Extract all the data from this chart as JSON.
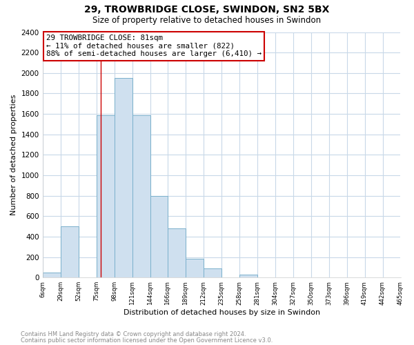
{
  "title": "29, TROWBRIDGE CLOSE, SWINDON, SN2 5BX",
  "subtitle": "Size of property relative to detached houses in Swindon",
  "xlabel": "Distribution of detached houses by size in Swindon",
  "ylabel": "Number of detached properties",
  "footer_line1": "Contains HM Land Registry data © Crown copyright and database right 2024.",
  "footer_line2": "Contains public sector information licensed under the Open Government Licence v3.0.",
  "bar_edges": [
    6,
    29,
    52,
    75,
    98,
    121,
    144,
    166,
    189,
    212,
    235,
    258,
    281,
    304,
    327,
    350,
    373,
    396,
    419,
    442,
    465
  ],
  "bar_heights": [
    50,
    500,
    0,
    1590,
    1950,
    1590,
    800,
    480,
    185,
    90,
    0,
    30,
    0,
    0,
    0,
    0,
    0,
    0,
    0,
    0
  ],
  "bar_color": "#cfe0ef",
  "bar_edgecolor": "#7ab0cc",
  "ylim": [
    0,
    2400
  ],
  "yticks": [
    0,
    200,
    400,
    600,
    800,
    1000,
    1200,
    1400,
    1600,
    1800,
    2000,
    2200,
    2400
  ],
  "property_line_x": 81,
  "property_line_color": "#cc0000",
  "annotation_title": "29 TROWBRIDGE CLOSE: 81sqm",
  "annotation_line1": "← 11% of detached houses are smaller (822)",
  "annotation_line2": "88% of semi-detached houses are larger (6,410) →",
  "background_color": "#ffffff",
  "grid_color": "#c8d8e8",
  "tick_labels": [
    "6sqm",
    "29sqm",
    "52sqm",
    "75sqm",
    "98sqm",
    "121sqm",
    "144sqm",
    "166sqm",
    "189sqm",
    "212sqm",
    "235sqm",
    "258sqm",
    "281sqm",
    "304sqm",
    "327sqm",
    "350sqm",
    "373sqm",
    "396sqm",
    "419sqm",
    "442sqm",
    "465sqm"
  ]
}
